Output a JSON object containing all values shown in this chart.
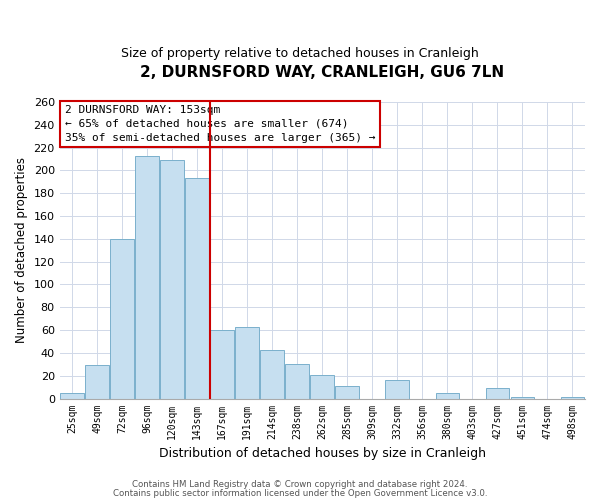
{
  "title": "2, DURNSFORD WAY, CRANLEIGH, GU6 7LN",
  "subtitle": "Size of property relative to detached houses in Cranleigh",
  "xlabel": "Distribution of detached houses by size in Cranleigh",
  "ylabel": "Number of detached properties",
  "bar_labels": [
    "25sqm",
    "49sqm",
    "72sqm",
    "96sqm",
    "120sqm",
    "143sqm",
    "167sqm",
    "191sqm",
    "214sqm",
    "238sqm",
    "262sqm",
    "285sqm",
    "309sqm",
    "332sqm",
    "356sqm",
    "380sqm",
    "403sqm",
    "427sqm",
    "451sqm",
    "474sqm",
    "498sqm"
  ],
  "bar_values": [
    5,
    29,
    140,
    213,
    209,
    193,
    60,
    63,
    43,
    30,
    21,
    11,
    0,
    16,
    0,
    5,
    0,
    9,
    1,
    0,
    1
  ],
  "bar_color": "#c6dff0",
  "bar_edge_color": "#7ab0cc",
  "vline_x": 5.5,
  "vline_color": "#cc0000",
  "ylim": [
    0,
    260
  ],
  "yticks": [
    0,
    20,
    40,
    60,
    80,
    100,
    120,
    140,
    160,
    180,
    200,
    220,
    240,
    260
  ],
  "annotation_title": "2 DURNSFORD WAY: 153sqm",
  "annotation_line1": "← 65% of detached houses are smaller (674)",
  "annotation_line2": "35% of semi-detached houses are larger (365) →",
  "footer1": "Contains HM Land Registry data © Crown copyright and database right 2024.",
  "footer2": "Contains public sector information licensed under the Open Government Licence v3.0.",
  "background_color": "#ffffff",
  "plot_background": "#ffffff",
  "grid_color": "#d0d8e8"
}
